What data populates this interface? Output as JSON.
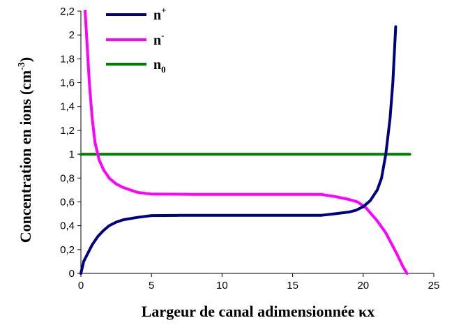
{
  "chart_data": {
    "type": "line",
    "title": "",
    "xlabel": "Largeur de canal adimensionnée κx",
    "ylabel_main": "Concentration en ions (cm",
    "ylabel_sup": "-3",
    "ylabel_close": ")",
    "xlim": [
      0,
      25
    ],
    "ylim": [
      0,
      2.2
    ],
    "xticks": [
      0,
      5,
      10,
      15,
      20,
      25
    ],
    "xtick_labels": [
      "0",
      "5",
      "10",
      "15",
      "20",
      "25"
    ],
    "yticks": [
      0,
      0.2,
      0.4,
      0.6,
      0.8,
      1,
      1.2,
      1.4,
      1.6,
      1.8,
      2,
      2.2
    ],
    "ytick_labels": [
      "0",
      "0,2",
      "0,4",
      "0,6",
      "0,8",
      "1",
      "1,2",
      "1,4",
      "1,6",
      "1,8",
      "2",
      "2,2"
    ],
    "grid": false,
    "legend_position": "top-left",
    "series": [
      {
        "name": "n+",
        "label_main": "n",
        "label_sup": "+",
        "color": "#000080",
        "x": [
          0,
          0.2,
          0.5,
          0.8,
          1.2,
          1.6,
          2.0,
          2.5,
          3.0,
          4.0,
          5.0,
          7.0,
          10.0,
          14.0,
          17.0,
          18.0,
          19.0,
          19.5,
          20.0,
          20.5,
          21.0,
          21.3,
          21.6,
          21.9,
          22.1,
          22.3
        ],
        "y": [
          0,
          0.1,
          0.17,
          0.24,
          0.31,
          0.36,
          0.4,
          0.43,
          0.45,
          0.47,
          0.485,
          0.487,
          0.487,
          0.487,
          0.487,
          0.5,
          0.515,
          0.53,
          0.56,
          0.61,
          0.7,
          0.8,
          1.0,
          1.3,
          1.6,
          2.07
        ]
      },
      {
        "name": "n-",
        "label_main": "n",
        "label_sup": "-",
        "color": "#ff00ff",
        "x": [
          0.3,
          0.45,
          0.6,
          0.8,
          1.0,
          1.3,
          1.6,
          2.0,
          2.5,
          3.0,
          4.0,
          5.0,
          8.0,
          12.0,
          17.0,
          18.0,
          19.0,
          19.6,
          20.2,
          21.0,
          21.6,
          22.0,
          22.4,
          22.8,
          23.1
        ],
        "y": [
          2.2,
          1.9,
          1.6,
          1.3,
          1.1,
          0.95,
          0.87,
          0.8,
          0.75,
          0.72,
          0.68,
          0.665,
          0.663,
          0.663,
          0.663,
          0.645,
          0.62,
          0.6,
          0.55,
          0.44,
          0.34,
          0.25,
          0.16,
          0.06,
          0.0
        ]
      },
      {
        "name": "n0",
        "label_main": "n",
        "label_sub": "0",
        "color": "#008000",
        "x": [
          0,
          23.3
        ],
        "y": [
          1.0,
          1.0
        ]
      }
    ]
  }
}
